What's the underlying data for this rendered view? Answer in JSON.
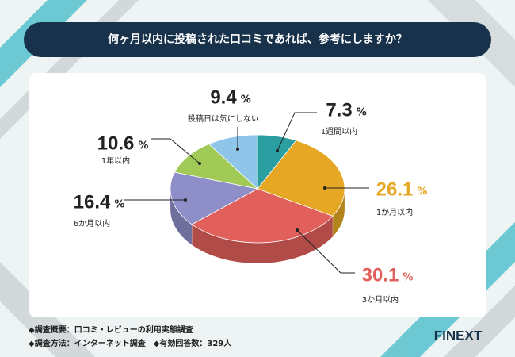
{
  "chart_data": {
    "type": "pie3d",
    "title": "何ヶ月以内に投稿された口コミであれば、参考にしますか？",
    "categories": [
      "1週間以内",
      "1か月以内",
      "3か月以内",
      "6か月以内",
      "1年以内",
      "投稿日は気にしない"
    ],
    "values": [
      7.3,
      26.1,
      30.1,
      16.4,
      10.6,
      9.4
    ],
    "colors": [
      "#2a9ea0",
      "#e6a824",
      "#e2605b",
      "#8e8ec9",
      "#a0c955",
      "#8ec5e8"
    ],
    "unit": "%",
    "notes": [
      "◆調査概要：口コミ・レビューの利用実態調査",
      "◆調査方法：インターネット調査　◆有効回答数：329人"
    ],
    "logo": "FINEXT"
  }
}
